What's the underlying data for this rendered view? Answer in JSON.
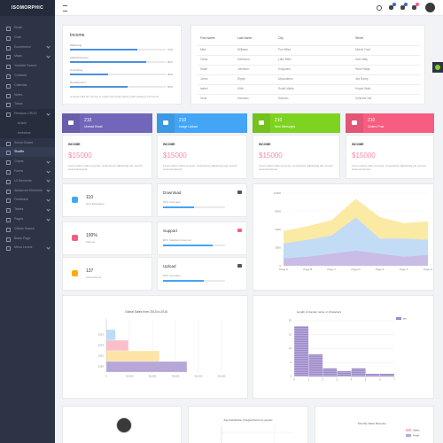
{
  "brand": "ISOMORPHIC",
  "sidebar": [
    {
      "label": "Email"
    },
    {
      "label": "Chat"
    },
    {
      "label": "Ecommerce",
      "expandable": true
    },
    {
      "label": "Maps",
      "expandable": true
    },
    {
      "label": "Youtube Search"
    },
    {
      "label": "Contacts"
    },
    {
      "label": "Calendar"
    },
    {
      "label": "Notes"
    },
    {
      "label": "Todos"
    },
    {
      "label": "Firestore CRUD",
      "expandable": true,
      "open": true
    },
    {
      "label": "Article",
      "sub": true
    },
    {
      "label": "Investors",
      "sub": true
    },
    {
      "label": "Scrum Board"
    },
    {
      "label": "Shuffle",
      "active": true
    },
    {
      "label": "Charts",
      "expandable": true
    },
    {
      "label": "Forms",
      "expandable": true
    },
    {
      "label": "UI Elements",
      "expandable": true
    },
    {
      "label": "Advanced Elements",
      "expandable": true
    },
    {
      "label": "Feedback",
      "expandable": true
    },
    {
      "label": "Tables",
      "expandable": true
    },
    {
      "label": "Pages",
      "expandable": true
    },
    {
      "label": "Github Search"
    },
    {
      "label": "Blank Page"
    },
    {
      "label": "Menu Levels",
      "expandable": true
    }
  ],
  "income": {
    "title": "Income",
    "bars": [
      {
        "label": "Marketing",
        "value": 70,
        "value_label": "70%"
      },
      {
        "label": "Addvertisement",
        "value": 80,
        "value_label": "80%"
      },
      {
        "label": "Consulting",
        "value": 40,
        "value_label": "40%"
      },
      {
        "label": "Development",
        "value": 60,
        "value_label": "60%"
      }
    ],
    "footer": "A report card for income is a document that shows each category of income"
  },
  "table": {
    "headers": [
      "First Name",
      "Last Name",
      "City",
      "Street"
    ],
    "rows": [
      [
        "Mike",
        "Williams",
        "Port Miles",
        "Melvin Oval"
      ],
      [
        "Oscar",
        "Harrisson",
        "Lake Billie",
        "Irwin Way"
      ],
      [
        "Sadie",
        "Johnston",
        "Kodyview",
        "Hane Ridge"
      ],
      [
        "Jovan",
        "Rippin",
        "Mosciskiton",
        "Jed Ramp"
      ],
      [
        "Isabel",
        "Kirlin",
        "South Myrtle",
        "Hoppe Walk"
      ],
      [
        "Verla",
        "Hammes",
        "Dareton",
        "Schinner Isle"
      ]
    ]
  },
  "stats": [
    {
      "value": 210,
      "label": "Unread Email",
      "color": "#7266ba"
    },
    {
      "value": 210,
      "label": "Image Upload",
      "color": "#42a5f6"
    },
    {
      "value": 210,
      "label": "New Messages",
      "color": "#7ed320"
    },
    {
      "value": 210,
      "label": "Orders Post",
      "color": "#f75d81"
    }
  ],
  "sales": [
    {
      "title": "INCOME",
      "amount": "$15000",
      "text": "Lorem ipsum dolor sit amet, consectetur adipisicing elit, sed do eiusmod tempor"
    },
    {
      "title": "INCOME",
      "amount": "$15000",
      "text": "Lorem ipsum dolor sit amet, consectetur adipisicing elit, sed do eiusmod tempor"
    },
    {
      "title": "INCOME",
      "amount": "$15000",
      "text": "Lorem ipsum dolor sit amet, consectetur adipisicing elit, sed do eiusmod tempor"
    },
    {
      "title": "INCOME",
      "amount": "$15000",
      "text": "Lorem ipsum dolor sit amet, consectetur adipisicing elit, sed do eiusmod tempor"
    }
  ],
  "widgets": [
    {
      "value": "110",
      "label": "New Messages",
      "color": "#42a5f6"
    },
    {
      "value": "100%",
      "label": "Volume",
      "color": "#f75d81"
    },
    {
      "value": "137",
      "label": "Achievement",
      "color": "#feac01"
    }
  ],
  "progress": [
    {
      "title": "Download",
      "value": 50,
      "label": "50% Complete",
      "color": "#42a5f6"
    },
    {
      "title": "Support",
      "value": 80,
      "label": "80% Satisfied Customer",
      "color": "#42a5f6"
    },
    {
      "title": "Upload",
      "value": 65,
      "label": "65% Complete",
      "color": "#42a5f6"
    }
  ],
  "chart_data": [
    {
      "type": "area",
      "categories": [
        "Page A",
        "Page B",
        "Page C",
        "Page D",
        "Page E",
        "Page F",
        "Page G"
      ],
      "series": [
        {
          "name": "uv",
          "color": "#c9bce6",
          "values": [
            1200,
            1500,
            2000,
            2500,
            2000,
            1500,
            1800
          ]
        },
        {
          "name": "pv",
          "color": "#c3dcf6",
          "values": [
            2500,
            2800,
            3000,
            5500,
            2500,
            3000,
            2500
          ]
        },
        {
          "name": "amt",
          "color": "#fbeaa4",
          "values": [
            2000,
            2200,
            2500,
            3000,
            3500,
            2500,
            3000
          ]
        }
      ],
      "ylim": [
        0,
        12000
      ],
      "yticks": [
        0,
        3000,
        6000,
        9000,
        12000
      ],
      "grid": true
    },
    {
      "type": "hbar",
      "title": "Global Sales from 2013 to 2016",
      "categories": [
        "2013",
        "2014",
        "2015",
        "2016"
      ],
      "values": [
        4000,
        9600,
        23000,
        35000
      ],
      "colors": [
        "#bcdcf9",
        "#f9bfcb",
        "#fde3a6",
        "#b6a7d8"
      ],
      "xlim": [
        0,
        50000
      ],
      "xticks": [
        0,
        {
          "value": 10000,
          "label": "10,000"
        },
        {
          "value": 20000,
          "label": "20,000"
        },
        {
          "value": 30000,
          "label": "30,000"
        },
        {
          "value": 40000,
          "label": "40,000"
        },
        {
          "value": 50000,
          "label": "50,000"
        }
      ],
      "grid": true
    },
    {
      "type": "histogram",
      "title": "Length of domain name, in characters",
      "legend": "len",
      "color": "#9b88c9",
      "bins": [
        0,
        1,
        2,
        3,
        4,
        5,
        6,
        7
      ],
      "values": [
        18,
        8,
        3,
        2,
        3,
        1,
        1
      ],
      "xlim": [
        0,
        7
      ],
      "xticks": [
        0,
        1,
        2,
        3,
        4,
        5,
        6,
        7
      ],
      "ylim": [
        0,
        20
      ],
      "yticks": [
        0,
        5,
        10,
        15,
        20
      ],
      "grid": true
    },
    {
      "type": "scatter",
      "title": "Age distribution of legal drivers by gender"
    },
    {
      "type": "legend",
      "title": "Monthly Sales Revenue",
      "series": [
        {
          "name": "Sales",
          "color": "#f9bfcb"
        },
        {
          "name": "Profit",
          "color": "#b6a7d8"
        }
      ]
    }
  ]
}
